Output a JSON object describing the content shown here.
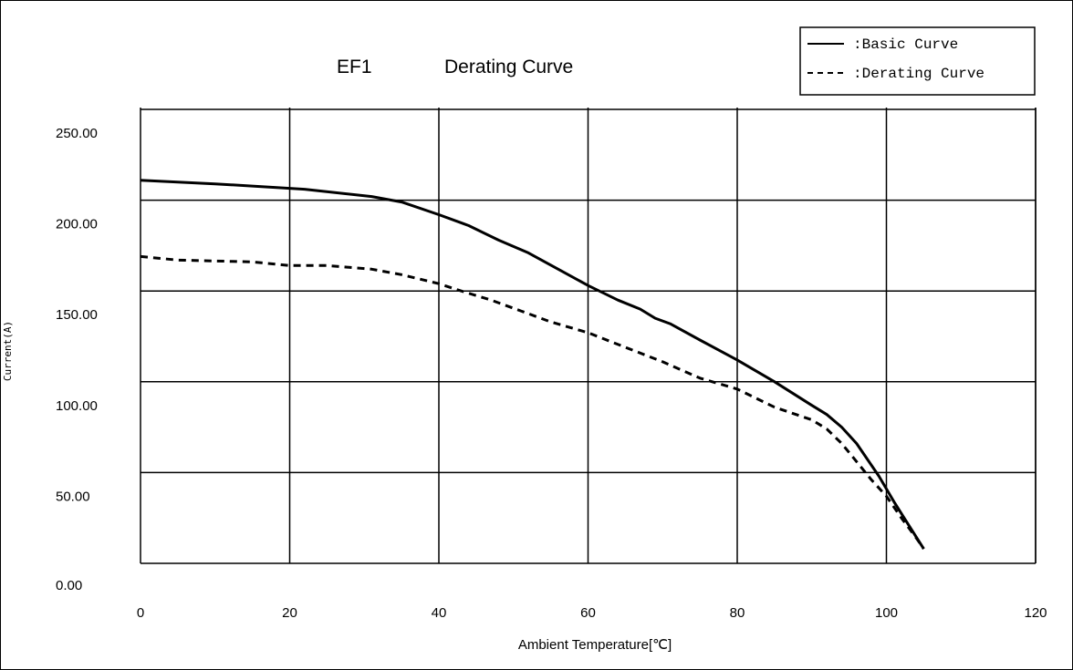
{
  "chart_data": {
    "type": "line",
    "title_parts": [
      "EF1",
      "Derating Curve"
    ],
    "xlabel": "Ambient Temperature[℃]",
    "ylabel": "Current(A)",
    "xlim": [
      0,
      120
    ],
    "ylim": [
      0,
      250
    ],
    "x_ticks": [
      0,
      20,
      40,
      60,
      80,
      100,
      120
    ],
    "x_tick_labels": [
      "0",
      "20",
      "40",
      "60",
      "80",
      "100",
      "120"
    ],
    "y_ticks": [
      0,
      50,
      100,
      150,
      200,
      250
    ],
    "y_tick_labels": [
      "0.00",
      "50.00",
      "100.00",
      "150.00",
      "200.00",
      "250.00"
    ],
    "grid": true,
    "legend_position": "top-right",
    "series": [
      {
        "name": ":Basic Curve",
        "style": "solid",
        "x": [
          0,
          10,
          22,
          31,
          35,
          40,
          44,
          48,
          52,
          56,
          60,
          64,
          67,
          69,
          71,
          75,
          80,
          85,
          90,
          92,
          94,
          96,
          97,
          99,
          101,
          103,
          105
        ],
        "y": [
          211,
          209,
          206,
          202,
          199,
          192,
          186,
          178,
          171,
          162,
          153,
          145,
          140,
          135,
          132,
          123,
          112,
          100,
          87,
          82,
          75,
          66,
          60,
          48,
          34,
          21,
          8
        ]
      },
      {
        "name": ":Derating Curve",
        "style": "dashed",
        "x": [
          0,
          5,
          15,
          20,
          25,
          31,
          35,
          40,
          43,
          47,
          51,
          55,
          60,
          65,
          70,
          75,
          80,
          85,
          90,
          92,
          94,
          96,
          98,
          100,
          102,
          104,
          105
        ],
        "y": [
          169,
          167,
          166,
          164,
          164,
          162,
          159,
          154,
          150,
          145,
          139,
          133,
          127,
          119,
          111,
          102,
          96,
          86,
          79,
          74,
          66,
          56,
          46,
          37,
          25,
          14,
          8
        ]
      }
    ]
  }
}
